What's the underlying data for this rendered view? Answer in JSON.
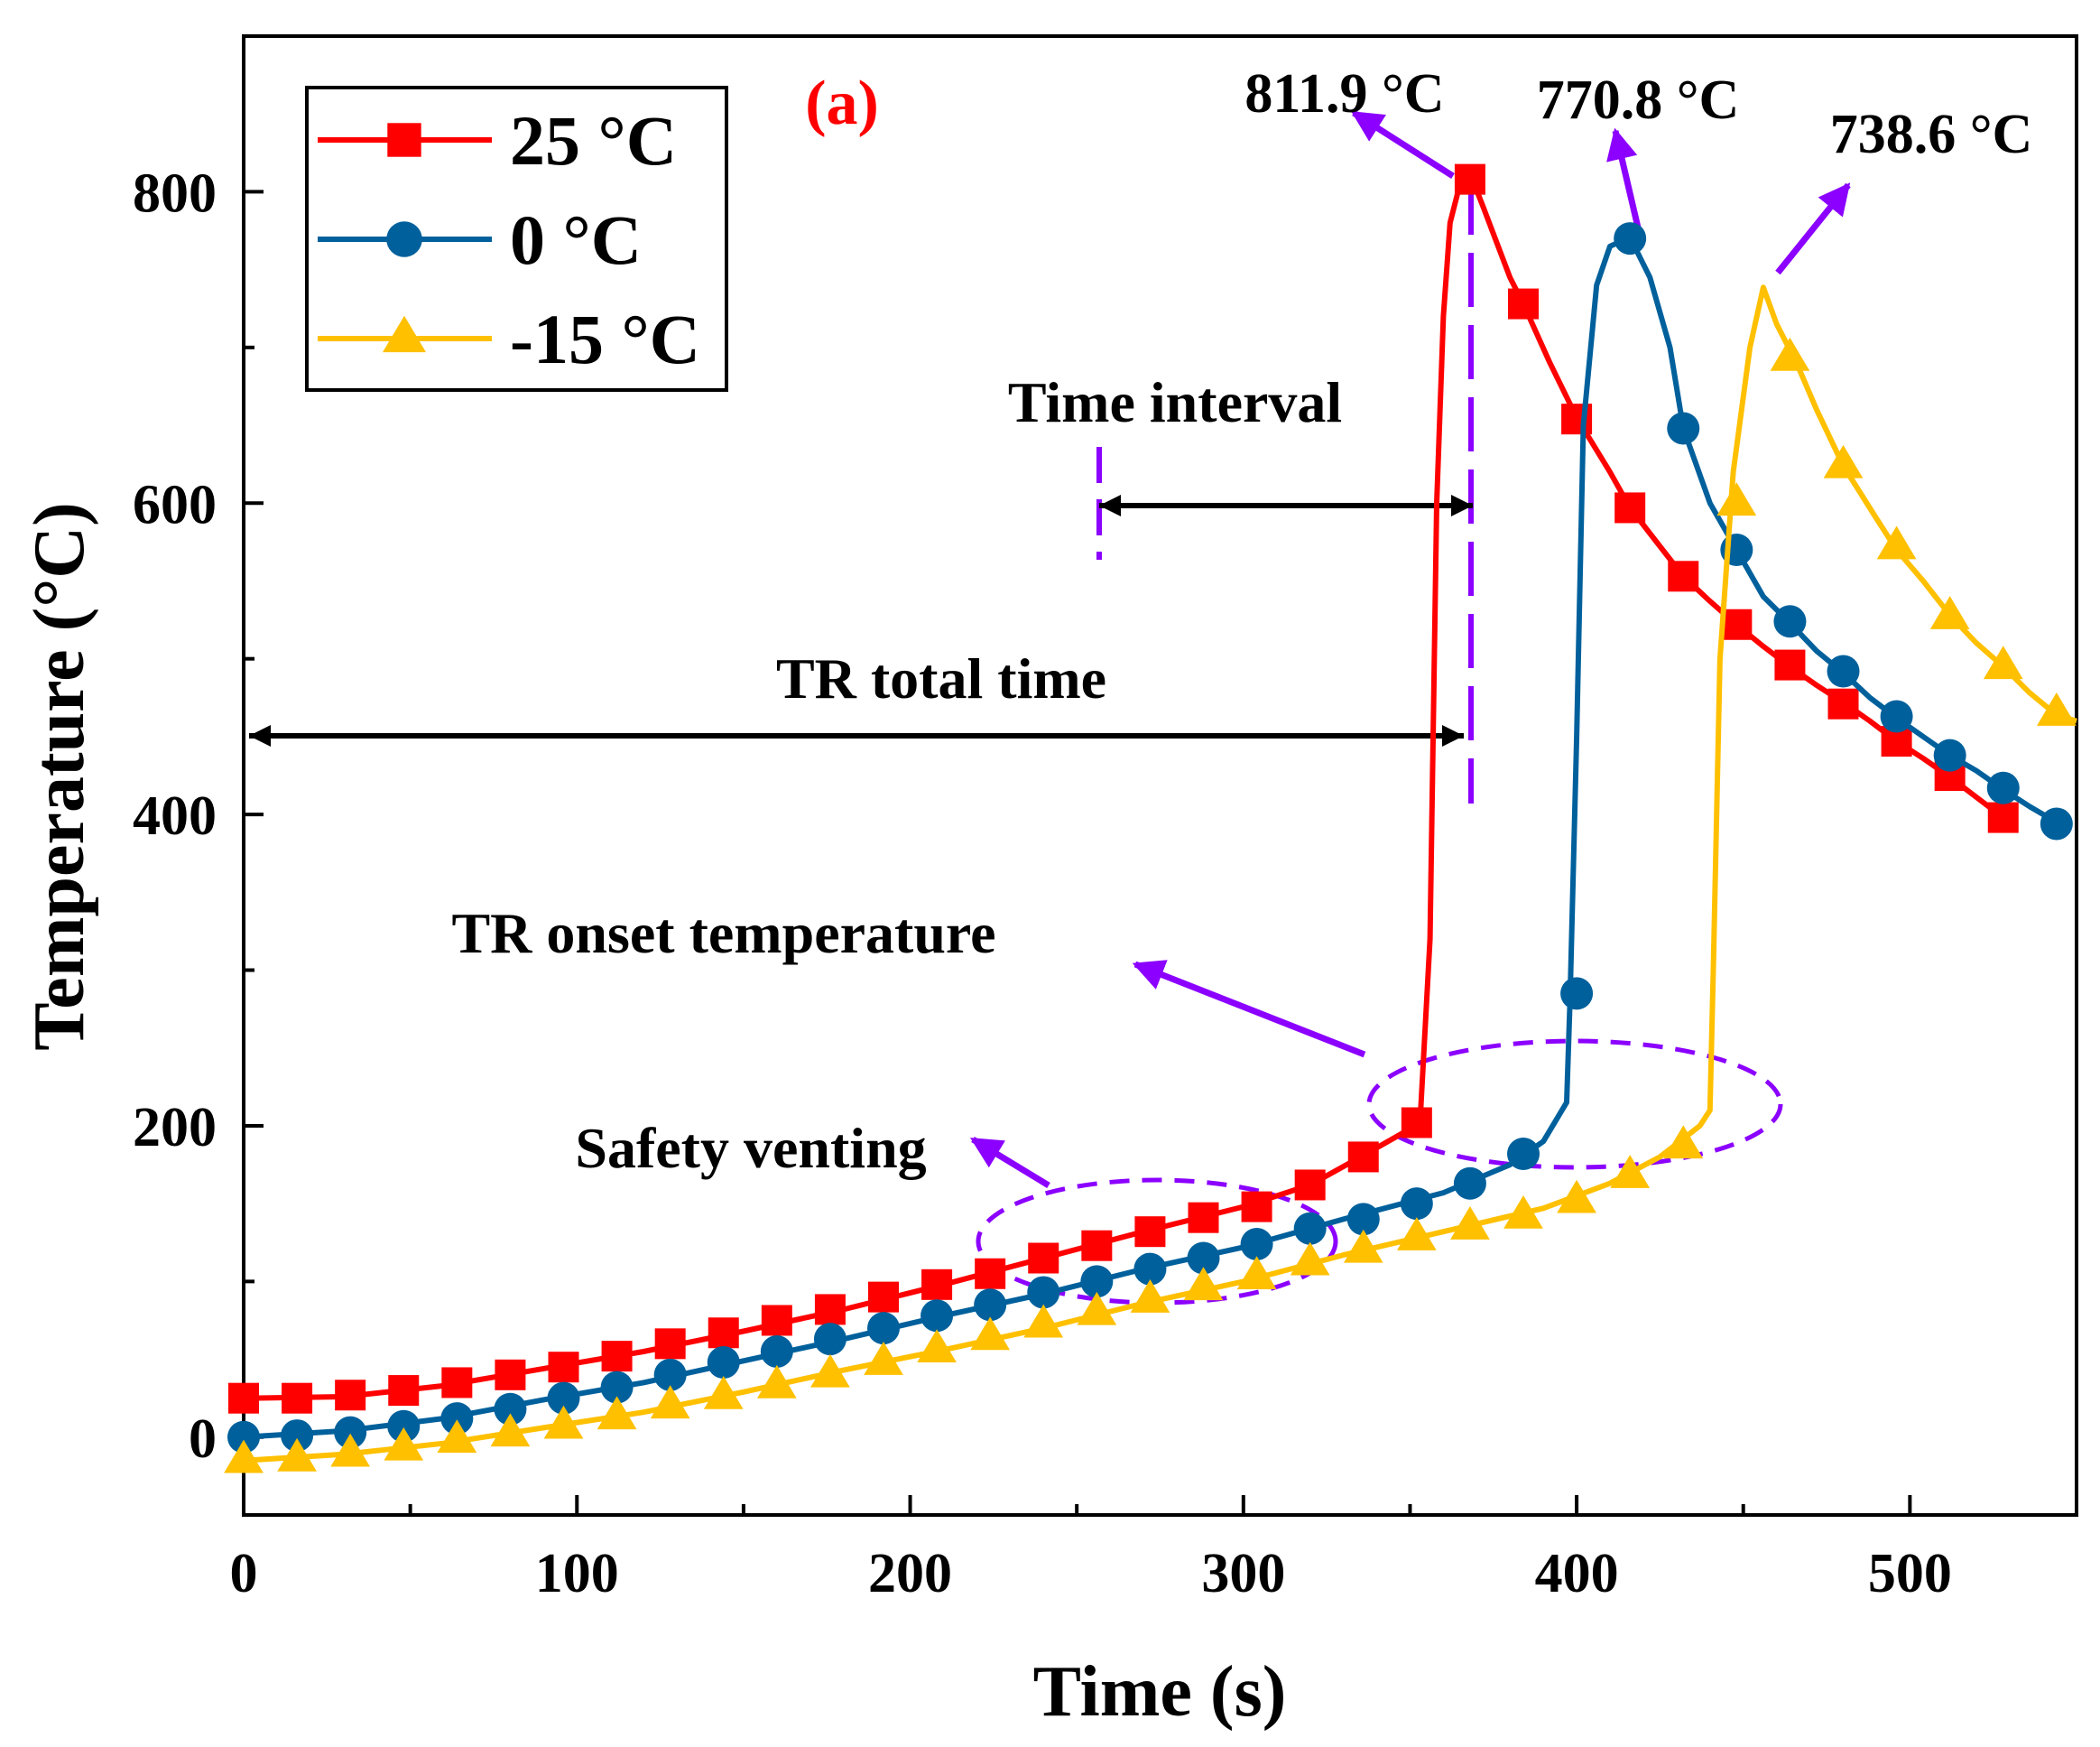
{
  "chart_data": {
    "type": "line",
    "panel_label": "(a)",
    "xlabel": "Time (s)",
    "ylabel": "Temperature (°C)",
    "xlim": [
      0,
      550
    ],
    "ylim": [
      -50,
      900
    ],
    "xticks": [
      0,
      100,
      200,
      300,
      400,
      500
    ],
    "yticks": [
      0,
      200,
      400,
      600,
      800
    ],
    "x_minor_ticks": [
      50,
      150,
      250,
      350,
      450
    ],
    "y_minor_ticks": [
      100,
      300,
      500,
      700
    ],
    "grid": false,
    "legend_position": "top-left",
    "series": [
      {
        "name": "25 °C",
        "color": "#ff0000",
        "marker": "square",
        "curve": [
          [
            0,
            25
          ],
          [
            30,
            26
          ],
          [
            60,
            33
          ],
          [
            90,
            44
          ],
          [
            120,
            55
          ],
          [
            150,
            68
          ],
          [
            180,
            82
          ],
          [
            210,
            98
          ],
          [
            240,
            115
          ],
          [
            270,
            132
          ],
          [
            300,
            148
          ],
          [
            320,
            162
          ],
          [
            336,
            181
          ],
          [
            350,
            198
          ],
          [
            353,
            202
          ],
          [
            356,
            320
          ],
          [
            358,
            600
          ],
          [
            360,
            720
          ],
          [
            362,
            780
          ],
          [
            365,
            805
          ],
          [
            368,
            811.9
          ],
          [
            372,
            790
          ],
          [
            380,
            745
          ],
          [
            384,
            728
          ],
          [
            392,
            690
          ],
          [
            400,
            655
          ],
          [
            410,
            620
          ],
          [
            416,
            597
          ],
          [
            424,
            575
          ],
          [
            432,
            553
          ],
          [
            440,
            537
          ],
          [
            448,
            522
          ],
          [
            456,
            508
          ],
          [
            464,
            495
          ],
          [
            472,
            483
          ],
          [
            480,
            472
          ],
          [
            488,
            460
          ],
          [
            496,
            447
          ],
          [
            504,
            436
          ],
          [
            512,
            424
          ],
          [
            520,
            411
          ],
          [
            528,
            398
          ],
          [
            532,
            398
          ]
        ],
        "marker_points": [
          [
            0,
            25
          ],
          [
            16,
            25
          ],
          [
            32,
            27
          ],
          [
            48,
            30
          ],
          [
            64,
            35
          ],
          [
            80,
            40
          ],
          [
            96,
            45
          ],
          [
            112,
            52
          ],
          [
            128,
            60
          ],
          [
            144,
            67
          ],
          [
            160,
            75
          ],
          [
            176,
            82
          ],
          [
            192,
            90
          ],
          [
            208,
            98
          ],
          [
            224,
            105
          ],
          [
            240,
            115
          ],
          [
            256,
            123
          ],
          [
            272,
            132
          ],
          [
            288,
            141
          ],
          [
            304,
            148
          ],
          [
            320,
            162
          ],
          [
            336,
            180
          ],
          [
            352,
            202
          ],
          [
            368,
            808
          ],
          [
            384,
            728
          ],
          [
            400,
            654
          ],
          [
            416,
            597
          ],
          [
            432,
            553
          ],
          [
            448,
            522
          ],
          [
            464,
            496
          ],
          [
            480,
            471
          ],
          [
            496,
            447
          ],
          [
            512,
            425
          ],
          [
            528,
            398
          ]
        ]
      },
      {
        "name": "0 °C",
        "color": "#00609c",
        "marker": "circle",
        "curve": [
          [
            0,
            0
          ],
          [
            30,
            4
          ],
          [
            60,
            12
          ],
          [
            90,
            24
          ],
          [
            120,
            35
          ],
          [
            150,
            49
          ],
          [
            180,
            63
          ],
          [
            210,
            78
          ],
          [
            240,
            92
          ],
          [
            270,
            108
          ],
          [
            300,
            122
          ],
          [
            330,
            140
          ],
          [
            360,
            157
          ],
          [
            380,
            175
          ],
          [
            390,
            190
          ],
          [
            397,
            215
          ],
          [
            398,
            280
          ],
          [
            400,
            450
          ],
          [
            402,
            650
          ],
          [
            406,
            740
          ],
          [
            410,
            765
          ],
          [
            416,
            770.8
          ],
          [
            422,
            745
          ],
          [
            428,
            700
          ],
          [
            432,
            648
          ],
          [
            440,
            600
          ],
          [
            448,
            570
          ],
          [
            456,
            540
          ],
          [
            464,
            523
          ],
          [
            472,
            505
          ],
          [
            480,
            491
          ],
          [
            488,
            475
          ],
          [
            496,
            462
          ],
          [
            504,
            450
          ],
          [
            512,
            438
          ],
          [
            520,
            428
          ],
          [
            528,
            416
          ],
          [
            536,
            405
          ],
          [
            544,
            395
          ]
        ],
        "marker_points": [
          [
            0,
            0
          ],
          [
            16,
            1
          ],
          [
            32,
            3
          ],
          [
            48,
            7
          ],
          [
            64,
            12
          ],
          [
            80,
            18
          ],
          [
            96,
            25
          ],
          [
            112,
            32
          ],
          [
            128,
            40
          ],
          [
            144,
            48
          ],
          [
            160,
            55
          ],
          [
            176,
            63
          ],
          [
            192,
            70
          ],
          [
            208,
            78
          ],
          [
            224,
            85
          ],
          [
            240,
            93
          ],
          [
            256,
            100
          ],
          [
            272,
            108
          ],
          [
            288,
            115
          ],
          [
            304,
            124
          ],
          [
            320,
            134
          ],
          [
            336,
            140
          ],
          [
            352,
            150
          ],
          [
            368,
            163
          ],
          [
            384,
            182
          ],
          [
            400,
            285
          ],
          [
            416,
            770
          ],
          [
            432,
            648
          ],
          [
            448,
            570
          ],
          [
            464,
            524
          ],
          [
            480,
            492
          ],
          [
            496,
            463
          ],
          [
            512,
            438
          ],
          [
            528,
            417
          ],
          [
            544,
            394
          ]
        ]
      },
      {
        "name": "-15 °C",
        "color": "#ffc000",
        "marker": "triangle",
        "curve": [
          [
            0,
            -15
          ],
          [
            30,
            -11
          ],
          [
            60,
            -4
          ],
          [
            90,
            6
          ],
          [
            120,
            16
          ],
          [
            150,
            29
          ],
          [
            180,
            43
          ],
          [
            210,
            56
          ],
          [
            240,
            70
          ],
          [
            270,
            86
          ],
          [
            300,
            100
          ],
          [
            330,
            117
          ],
          [
            360,
            132
          ],
          [
            390,
            147
          ],
          [
            410,
            163
          ],
          [
            425,
            180
          ],
          [
            437,
            200
          ],
          [
            440,
            210
          ],
          [
            441,
            300
          ],
          [
            443,
            500
          ],
          [
            447,
            620
          ],
          [
            452,
            700
          ],
          [
            456,
            738.6
          ],
          [
            460,
            715
          ],
          [
            466,
            690
          ],
          [
            472,
            660
          ],
          [
            480,
            624
          ],
          [
            490,
            590
          ],
          [
            496,
            570
          ],
          [
            504,
            550
          ],
          [
            512,
            528
          ],
          [
            520,
            510
          ],
          [
            528,
            495
          ],
          [
            536,
            478
          ],
          [
            544,
            464
          ],
          [
            550,
            460
          ]
        ],
        "marker_points": [
          [
            0,
            -15
          ],
          [
            16,
            -14
          ],
          [
            32,
            -11
          ],
          [
            48,
            -7
          ],
          [
            64,
            -2
          ],
          [
            80,
            2
          ],
          [
            96,
            7
          ],
          [
            112,
            13
          ],
          [
            128,
            20
          ],
          [
            144,
            26
          ],
          [
            160,
            33
          ],
          [
            176,
            40
          ],
          [
            192,
            48
          ],
          [
            208,
            56
          ],
          [
            224,
            64
          ],
          [
            240,
            72
          ],
          [
            256,
            80
          ],
          [
            272,
            88
          ],
          [
            288,
            96
          ],
          [
            304,
            103
          ],
          [
            320,
            112
          ],
          [
            336,
            120
          ],
          [
            352,
            128
          ],
          [
            368,
            135
          ],
          [
            384,
            142
          ],
          [
            400,
            152
          ],
          [
            416,
            168
          ],
          [
            432,
            187
          ],
          [
            448,
            600
          ],
          [
            464,
            693
          ],
          [
            480,
            624
          ],
          [
            496,
            572
          ],
          [
            512,
            527
          ],
          [
            528,
            495
          ],
          [
            544,
            465
          ]
        ]
      }
    ],
    "annotations": [
      {
        "text": "811.9 °C",
        "color": "#000000"
      },
      {
        "text": "770.8 °C",
        "color": "#000000"
      },
      {
        "text": "738.6 °C",
        "color": "#000000"
      },
      {
        "text": "Time interval",
        "color": "#000000"
      },
      {
        "text": "TR total time",
        "color": "#000000"
      },
      {
        "text": "TR onset temperature",
        "color": "#000000"
      },
      {
        "text": "Safety venting",
        "color": "#000000"
      }
    ],
    "annotation_color": "#8b00ff"
  }
}
